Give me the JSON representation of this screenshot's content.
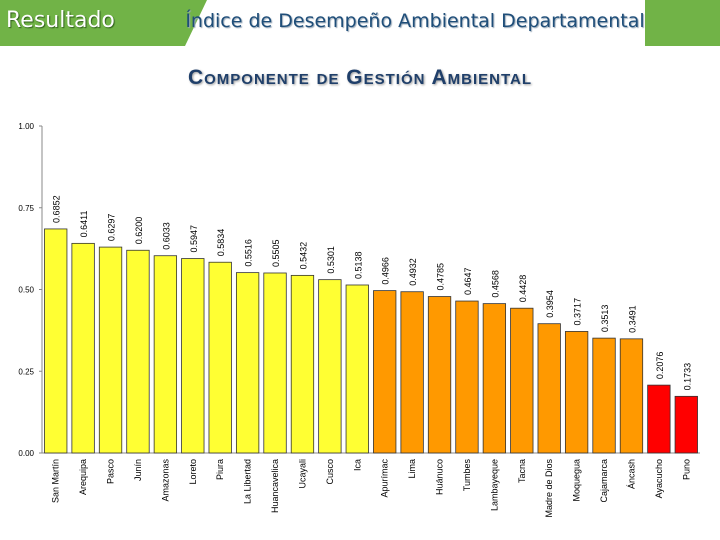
{
  "header": {
    "section_label": "Resultado",
    "title": "Índice de Desempeño Ambiental Departamental"
  },
  "chart_data": {
    "type": "bar",
    "title": "Componente de Gestión Ambiental",
    "xlabel": "",
    "ylabel": "",
    "ylim": [
      0,
      1
    ],
    "y_ticks": [
      "0.00",
      "0.25",
      "0.50",
      "0.75",
      "1.00"
    ],
    "y_tick_values": [
      0,
      0.25,
      0.5,
      0.75,
      1.0
    ],
    "categories": [
      "San Martín",
      "Arequipa",
      "Pasco",
      "Junín",
      "Amazonas",
      "Loreto",
      "Piura",
      "La Libertad",
      "Huancavelica",
      "Ucayali",
      "Cusco",
      "Ica",
      "Apurímac",
      "Lima",
      "Huánuco",
      "Tumbes",
      "Lambayeque",
      "Tacna",
      "Madre de Dios",
      "Moquegua",
      "Cajamarca",
      "Áncash",
      "Ayacucho",
      "Puno"
    ],
    "values": [
      0.6852,
      0.6411,
      0.6297,
      0.62,
      0.6033,
      0.5947,
      0.5834,
      0.5516,
      0.5505,
      0.5432,
      0.5301,
      0.5138,
      0.4966,
      0.4932,
      0.4785,
      0.4647,
      0.4568,
      0.4428,
      0.3954,
      0.3717,
      0.3513,
      0.3491,
      0.2076,
      0.1733
    ],
    "value_labels": [
      "0.6852",
      "0.6411",
      "0.6297",
      "0.6200",
      "0.6033",
      "0.5947",
      "0.5834",
      "0.5516",
      "0.5505",
      "0.5432",
      "0.5301",
      "0.5138",
      "0.4966",
      "0.4932",
      "0.4785",
      "0.4647",
      "0.4568",
      "0.4428",
      "0.3954",
      "0.3717",
      "0.3513",
      "0.3491",
      "0.2076",
      "0.1733"
    ],
    "colors": [
      "#ffff33",
      "#ffff33",
      "#ffff33",
      "#ffff33",
      "#ffff33",
      "#ffff33",
      "#ffff33",
      "#ffff33",
      "#ffff33",
      "#ffff33",
      "#ffff33",
      "#ffff33",
      "#ff9900",
      "#ff9900",
      "#ff9900",
      "#ff9900",
      "#ff9900",
      "#ff9900",
      "#ff9900",
      "#ff9900",
      "#ff9900",
      "#ff9900",
      "#ff0000",
      "#ff0000"
    ]
  }
}
